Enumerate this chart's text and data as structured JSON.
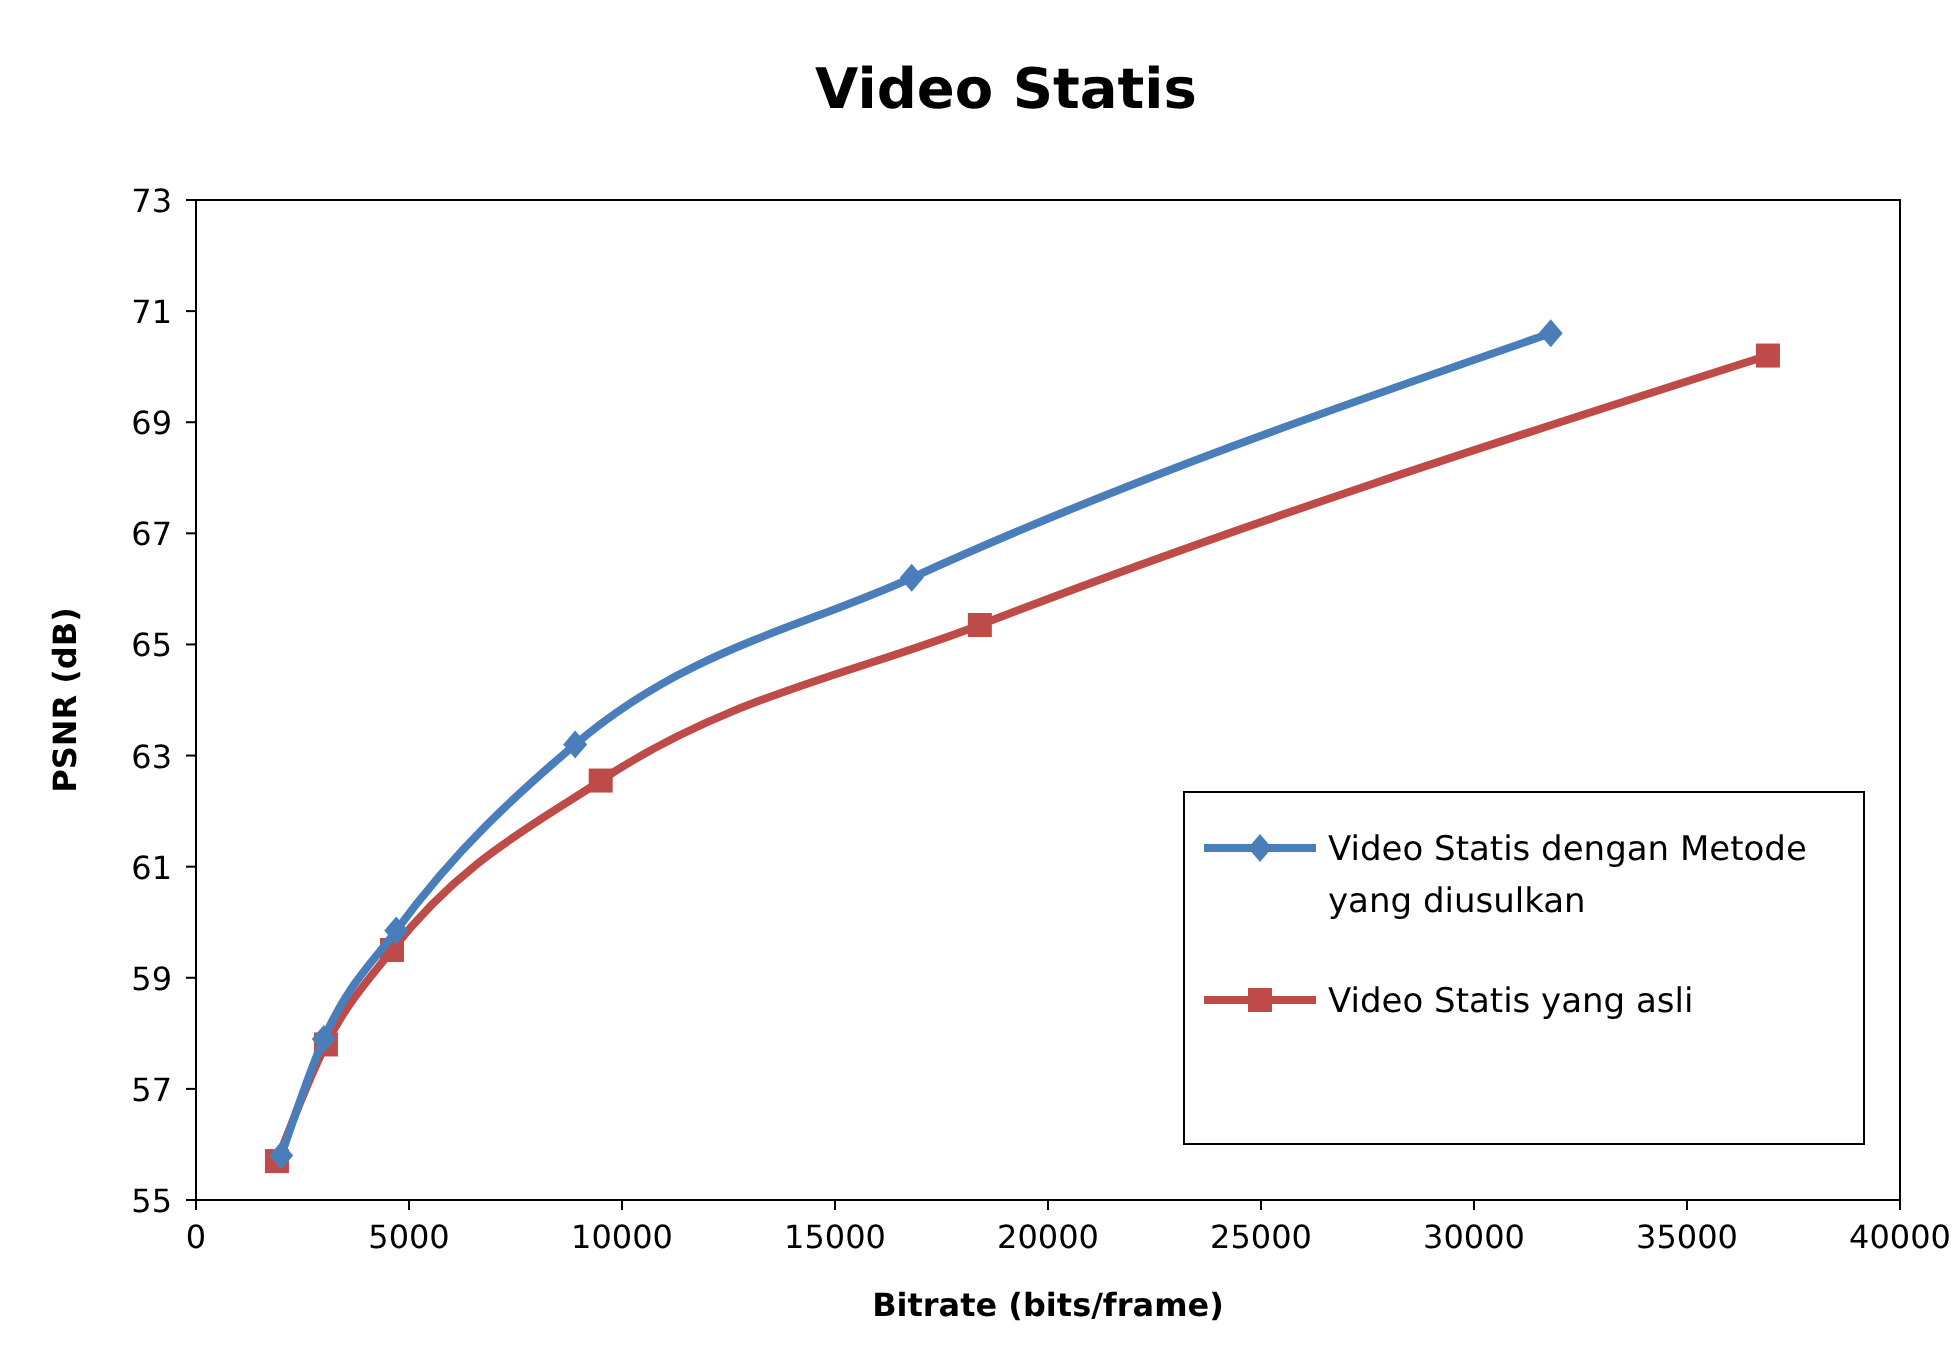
{
  "chart_data": {
    "type": "line",
    "title": "Video Statis",
    "xlabel": "Bitrate (bits/frame)",
    "ylabel": "PSNR (dB)",
    "xlim": [
      0,
      40000
    ],
    "xticks": [
      0,
      5000,
      10000,
      15000,
      20000,
      25000,
      30000,
      35000,
      40000
    ],
    "ylim": [
      55,
      73
    ],
    "yticks": [
      55,
      57,
      59,
      61,
      63,
      65,
      67,
      69,
      71,
      73
    ],
    "grid": false,
    "legend": "bottom right",
    "series": [
      {
        "name": "Video Statis dengan Metode yang diusulkan",
        "color": "#4a7ebb",
        "marker": "diamond",
        "x": [
          2000,
          3000,
          4700,
          8900,
          16800,
          31800
        ],
        "values": [
          55.8,
          57.9,
          59.85,
          63.2,
          66.2,
          70.6
        ]
      },
      {
        "name": "Video Statis yang asli",
        "color": "#be4b48",
        "marker": "square",
        "x": [
          1900,
          3050,
          4600,
          9500,
          18400,
          36900
        ],
        "values": [
          55.7,
          57.8,
          59.5,
          62.55,
          65.35,
          70.2
        ]
      }
    ]
  }
}
